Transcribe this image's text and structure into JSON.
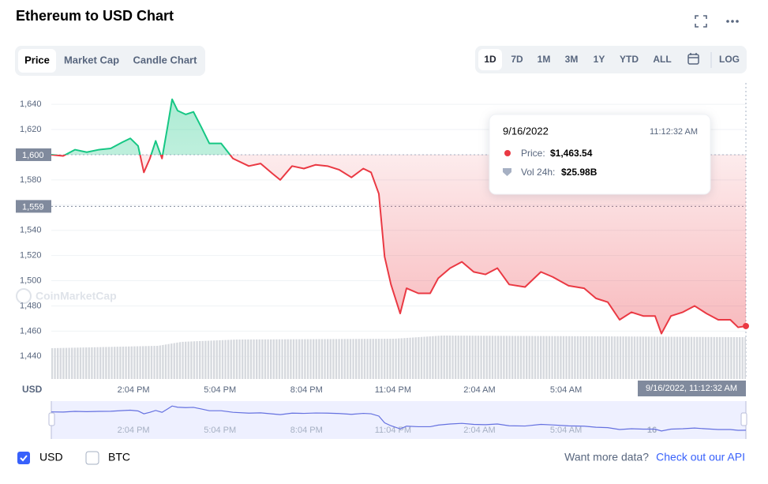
{
  "header": {
    "title": "Ethereum to USD Chart"
  },
  "tabs": [
    "Price",
    "Market Cap",
    "Candle Chart"
  ],
  "ranges": [
    "1D",
    "7D",
    "1M",
    "3M",
    "1Y",
    "YTD",
    "ALL",
    "LOG"
  ],
  "watermark": "CoinMarketCap",
  "tooltip": {
    "date": "9/16/2022",
    "time": "11:12:32 AM",
    "price_label": "Price:",
    "price": "$1,463.54",
    "volume_label": "Vol 24h:",
    "volume": "$25.98B"
  },
  "crosshair_time": "9/16/2022, 11:12:32 AM",
  "navigator_day_label": "16",
  "legend": [
    "USD",
    "BTC"
  ],
  "footer": {
    "prompt": "Want more data?",
    "link": "Check out our API"
  },
  "chart_data": {
    "type": "line",
    "y_label": "USD",
    "x": [
      -2.85,
      -2.44,
      -2.03,
      -1.62,
      -1.2,
      -0.79,
      -0.38,
      -0.11,
      0.16,
      0.36,
      0.57,
      0.77,
      0.99,
      1.18,
      1.34,
      1.53,
      1.81,
      2.08,
      2.35,
      2.63,
      3.04,
      3.45,
      4.0,
      4.41,
      4.82,
      5.09,
      5.5,
      5.91,
      6.32,
      6.73,
      7.14,
      7.56,
      7.97,
      8.24,
      8.51,
      8.71,
      8.93,
      9.25,
      9.47,
      9.88,
      10.29,
      10.57,
      10.98,
      11.39,
      11.8,
      12.21,
      12.62,
      13.03,
      13.58,
      14.13,
      14.54,
      15.09,
      15.63,
      16.04,
      16.45,
      16.86,
      17.27,
      17.68,
      18.09,
      18.31,
      18.64,
      19.05,
      19.46,
      19.87,
      20.28,
      20.7,
      20.97,
      21.24
    ],
    "values": [
      1600,
      1599,
      1604,
      1602,
      1604,
      1605,
      1610,
      1613,
      1607,
      1586,
      1597,
      1611,
      1597,
      1622,
      1644,
      1635,
      1632,
      1634,
      1622,
      1609,
      1609,
      1597,
      1591,
      1593,
      1585,
      1580,
      1591,
      1589,
      1592,
      1591,
      1588,
      1582,
      1589,
      1586,
      1569,
      1519,
      1497,
      1474,
      1494,
      1490,
      1490,
      1502,
      1510,
      1515,
      1507,
      1505,
      1510,
      1497,
      1495,
      1507,
      1503,
      1496,
      1494,
      1486,
      1483,
      1469,
      1475,
      1472,
      1472,
      1458,
      1472,
      1475,
      1480,
      1474,
      1469,
      1469,
      1463,
      1464
    ],
    "xlim": [
      -2.85,
      21.24
    ],
    "xticks": [
      {
        "value": 0,
        "label": "2:04 PM"
      },
      {
        "value": 3,
        "label": "5:04 PM"
      },
      {
        "value": 6,
        "label": "8:04 PM"
      },
      {
        "value": 9,
        "label": "11:04 PM"
      },
      {
        "value": 12,
        "label": "2:04 AM"
      },
      {
        "value": 15,
        "label": "5:04 AM"
      }
    ],
    "ylim": [
      1422,
      1657
    ],
    "yticks": [
      {
        "value": 1440,
        "label": "1,440"
      },
      {
        "value": 1460,
        "label": "1,460"
      },
      {
        "value": 1480,
        "label": "1,480"
      },
      {
        "value": 1500,
        "label": "1,500"
      },
      {
        "value": 1520,
        "label": "1,520"
      },
      {
        "value": 1540,
        "label": "1,540"
      },
      {
        "value": 1560,
        "label": "1,560"
      },
      {
        "value": 1580,
        "label": "1,580"
      },
      {
        "value": 1600,
        "label": "1,600"
      },
      {
        "value": 1620,
        "label": "1,620"
      },
      {
        "value": 1640,
        "label": "1,640"
      }
    ],
    "baseline": {
      "value": 1600,
      "label": "1,600"
    },
    "crosshair_y": {
      "value": 1559,
      "label": "1,559"
    },
    "up_color": "#16c784",
    "down_color": "#ea3943",
    "grid": true
  }
}
